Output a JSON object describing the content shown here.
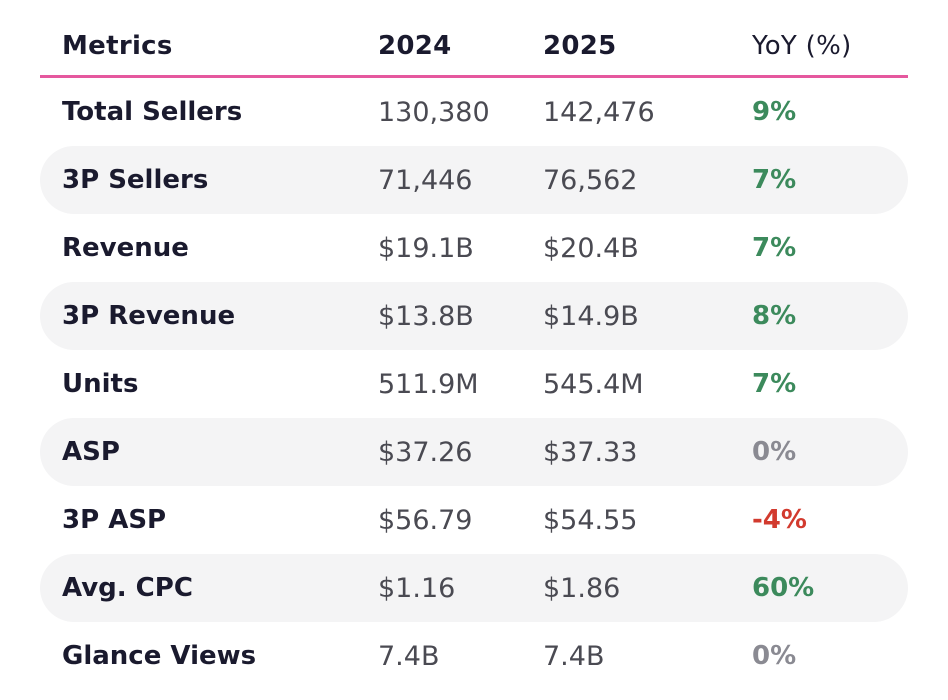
{
  "header": {
    "metrics": "Metrics",
    "year1": "2024",
    "year2": "2025",
    "yoy": "YoY (%)"
  },
  "rows": [
    {
      "metric": "Total Sellers",
      "v2024": "130,380",
      "v2025": "142,476",
      "yoy": "9%",
      "trend": "pos"
    },
    {
      "metric": "3P Sellers",
      "v2024": "71,446",
      "v2025": "76,562",
      "yoy": "7%",
      "trend": "pos"
    },
    {
      "metric": "Revenue",
      "v2024": "$19.1B",
      "v2025": "$20.4B",
      "yoy": "7%",
      "trend": "pos"
    },
    {
      "metric": "3P Revenue",
      "v2024": "$13.8B",
      "v2025": "$14.9B",
      "yoy": "8%",
      "trend": "pos"
    },
    {
      "metric": "Units",
      "v2024": "511.9M",
      "v2025": "545.4M",
      "yoy": "7%",
      "trend": "pos"
    },
    {
      "metric": "ASP",
      "v2024": "$37.26",
      "v2025": "$37.33",
      "yoy": "0%",
      "trend": "zero"
    },
    {
      "metric": "3P ASP",
      "v2024": "$56.79",
      "v2025": "$54.55",
      "yoy": "-4%",
      "trend": "neg"
    },
    {
      "metric": "Avg. CPC",
      "v2024": "$1.16",
      "v2025": "$1.86",
      "yoy": "60%",
      "trend": "pos"
    },
    {
      "metric": "Glance Views",
      "v2024": "7.4B",
      "v2025": "7.4B",
      "yoy": "0%",
      "trend": "zero"
    }
  ],
  "colors": {
    "accent_line": "#e5589e",
    "positive": "#3c8a5c",
    "neutral": "#8a8a92",
    "negative": "#d23a2e",
    "row_shade": "#f4f4f5"
  }
}
